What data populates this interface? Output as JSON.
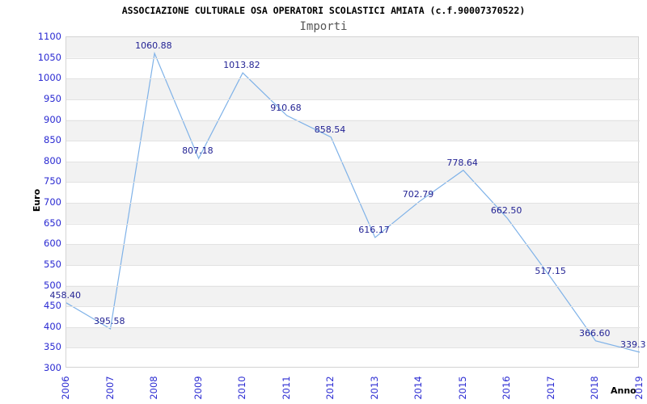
{
  "header": {
    "title": "ASSOCIAZIONE CULTURALE OSA OPERATORI SCOLASTICI AMIATA (c.f.90007370522)",
    "subtitle": "Importi"
  },
  "chart_data": {
    "type": "line",
    "title": "ASSOCIAZIONE CULTURALE OSA OPERATORI SCOLASTICI AMIATA (c.f.90007370522)",
    "subtitle": "Importi",
    "xlabel": "Anno",
    "ylabel": "Euro",
    "categories": [
      "2006",
      "2007",
      "2008",
      "2009",
      "2010",
      "2011",
      "2012",
      "2013",
      "2014",
      "2015",
      "2016",
      "2017",
      "2018",
      "2019"
    ],
    "series": [
      {
        "name": "Importi",
        "values": [
          458.4,
          395.58,
          1060.88,
          807.18,
          1013.82,
          910.68,
          858.54,
          616.17,
          702.79,
          778.64,
          662.5,
          517.15,
          366.6,
          339.3
        ]
      }
    ],
    "value_labels": [
      "458.40",
      "395.58",
      "1060.88",
      "807.18",
      "1013.82",
      "910.68",
      "858.54",
      "616.17",
      "702.79",
      "778.64",
      "662.50",
      "517.15",
      "366.60",
      "339.3"
    ],
    "ylim": [
      300,
      1100
    ],
    "ytick_step": 50,
    "grid": true,
    "legend": "none",
    "band_fill": true,
    "colors": {
      "line": "#7fb2e8",
      "tick_label": "#2a2ad2",
      "value_label": "#232394",
      "band": "#f2f2f2",
      "gridline": "#e2e2e2",
      "plot_border": "#d4d4d4",
      "title": "#000000",
      "subtitle": "#555555",
      "axis_title": "#000000"
    }
  }
}
